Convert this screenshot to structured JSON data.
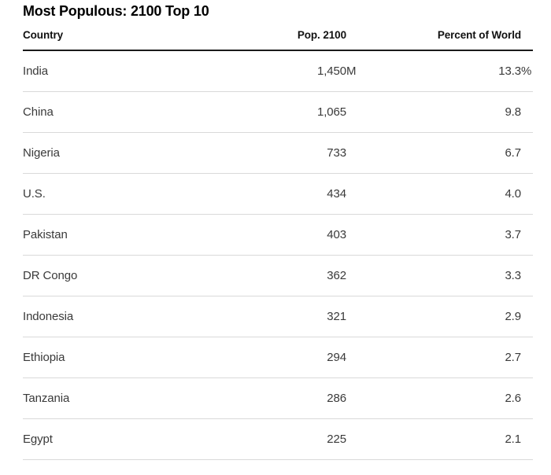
{
  "title": "Most Populous: 2100 Top 10",
  "table": {
    "headers": {
      "country": "Country",
      "pop": "Pop. 2100",
      "pct": "Percent of World"
    },
    "rows": [
      {
        "country": "India",
        "pop": "1,450",
        "pop_suffix": "M",
        "pct": "13.3",
        "pct_suffix": "%"
      },
      {
        "country": "China",
        "pop": "1,065",
        "pop_suffix": "",
        "pct": "9.8",
        "pct_suffix": ""
      },
      {
        "country": "Nigeria",
        "pop": "733",
        "pop_suffix": "",
        "pct": "6.7",
        "pct_suffix": ""
      },
      {
        "country": "U.S.",
        "pop": "434",
        "pop_suffix": "",
        "pct": "4.0",
        "pct_suffix": ""
      },
      {
        "country": "Pakistan",
        "pop": "403",
        "pop_suffix": "",
        "pct": "3.7",
        "pct_suffix": ""
      },
      {
        "country": "DR Congo",
        "pop": "362",
        "pop_suffix": "",
        "pct": "3.3",
        "pct_suffix": ""
      },
      {
        "country": "Indonesia",
        "pop": "321",
        "pop_suffix": "",
        "pct": "2.9",
        "pct_suffix": ""
      },
      {
        "country": "Ethiopia",
        "pop": "294",
        "pop_suffix": "",
        "pct": "2.7",
        "pct_suffix": ""
      },
      {
        "country": "Tanzania",
        "pop": "286",
        "pop_suffix": "",
        "pct": "2.6",
        "pct_suffix": ""
      },
      {
        "country": "Egypt",
        "pop": "225",
        "pop_suffix": "",
        "pct": "2.1",
        "pct_suffix": ""
      }
    ]
  },
  "chart_data": {
    "type": "table",
    "title": "Most Populous: 2100 Top 10",
    "columns": [
      "Country",
      "Pop. 2100",
      "Percent of World"
    ],
    "categories": [
      "India",
      "China",
      "Nigeria",
      "U.S.",
      "Pakistan",
      "DR Congo",
      "Indonesia",
      "Ethiopia",
      "Tanzania",
      "Egypt"
    ],
    "series": [
      {
        "name": "Pop. 2100 (millions)",
        "values": [
          1450,
          1065,
          733,
          434,
          403,
          362,
          321,
          294,
          286,
          225
        ]
      },
      {
        "name": "Percent of World (%)",
        "values": [
          13.3,
          9.8,
          6.7,
          4.0,
          3.7,
          3.3,
          2.9,
          2.7,
          2.6,
          2.1
        ]
      }
    ],
    "rows": [
      [
        "India",
        "1,450M",
        "13.3%"
      ],
      [
        "China",
        "1,065",
        "9.8"
      ],
      [
        "Nigeria",
        "733",
        "6.7"
      ],
      [
        "U.S.",
        "434",
        "4.0"
      ],
      [
        "Pakistan",
        "403",
        "3.7"
      ],
      [
        "DR Congo",
        "362",
        "3.3"
      ],
      [
        "Indonesia",
        "321",
        "2.9"
      ],
      [
        "Ethiopia",
        "294",
        "2.7"
      ],
      [
        "Tanzania",
        "286",
        "2.6"
      ],
      [
        "Egypt",
        "225",
        "2.1"
      ]
    ],
    "layout_hints": {
      "header_rule": "thick-black",
      "row_dividers": "light-gray",
      "numeric_alignment": "right"
    }
  },
  "colors": {
    "background": "#ffffff",
    "title_text": "#000000",
    "header_text": "#111111",
    "body_text": "#3a3a3a",
    "header_rule": "#1a1a1a",
    "row_divider": "#d9d9d9"
  }
}
